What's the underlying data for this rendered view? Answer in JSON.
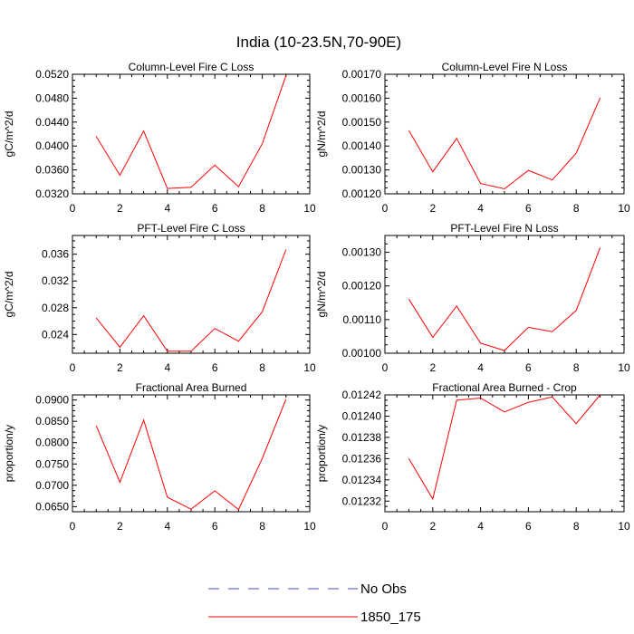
{
  "figure_title": "India (10-23.5N,70-90E)",
  "colors": {
    "series": "#ff0000",
    "obs": "#4b4bc8",
    "axis": "#000000"
  },
  "legend": {
    "obs_label": "No Obs",
    "model_label": "1850_175"
  },
  "chart_data": [
    {
      "type": "line",
      "title": "Column-Level Fire C Loss",
      "ylabel": "gC/m^2/d",
      "xlim": [
        0,
        10
      ],
      "ylim": [
        0.032,
        0.052
      ],
      "xticks": [
        "0",
        "2",
        "4",
        "6",
        "8",
        "10"
      ],
      "yticks": [
        0.032,
        0.036,
        0.04,
        0.044,
        0.048,
        0.052
      ],
      "ytick_labels": [
        "0.0320",
        "0.0360",
        "0.0400",
        "0.0440",
        "0.0480",
        "0.0520"
      ],
      "x": [
        1,
        2,
        3,
        4,
        5,
        6,
        7,
        8,
        9
      ],
      "series": [
        {
          "name": "1850_175",
          "values": [
            0.0416,
            0.0351,
            0.0425,
            0.0329,
            0.0331,
            0.0368,
            0.0332,
            0.0404,
            0.0518
          ]
        }
      ]
    },
    {
      "type": "line",
      "title": "Column-Level Fire N Loss",
      "ylabel": "gN/m^2/d",
      "xlim": [
        0,
        10
      ],
      "ylim": [
        0.0012,
        0.0017
      ],
      "xticks": [
        "0",
        "2",
        "4",
        "6",
        "8",
        "10"
      ],
      "yticks": [
        0.0012,
        0.0013,
        0.0014,
        0.0015,
        0.0016,
        0.0017
      ],
      "ytick_labels": [
        "0.00120",
        "0.00130",
        "0.00140",
        "0.00150",
        "0.00160",
        "0.00170"
      ],
      "x": [
        1,
        2,
        3,
        4,
        5,
        6,
        7,
        8,
        9
      ],
      "series": [
        {
          "name": "1850_175",
          "values": [
            0.001465,
            0.001292,
            0.001432,
            0.001243,
            0.001221,
            0.001298,
            0.001258,
            0.00137,
            0.001601
          ]
        }
      ]
    },
    {
      "type": "line",
      "title": "PFT-Level Fire C Loss",
      "ylabel": "gC/m^2/d",
      "xlim": [
        0,
        10
      ],
      "ylim": [
        0.0212,
        0.0388
      ],
      "xticks": [
        "0",
        "2",
        "4",
        "6",
        "8",
        "10"
      ],
      "yticks": [
        0.024,
        0.028,
        0.032,
        0.036
      ],
      "ytick_labels": [
        "0.024",
        "0.028",
        "0.032",
        "0.036"
      ],
      "x": [
        1,
        2,
        3,
        4,
        5,
        6,
        7,
        8,
        9
      ],
      "series": [
        {
          "name": "1850_175",
          "values": [
            0.0265,
            0.0221,
            0.0268,
            0.0215,
            0.0215,
            0.0249,
            0.023,
            0.0274,
            0.0367
          ]
        }
      ]
    },
    {
      "type": "line",
      "title": "PFT-Level Fire N Loss",
      "ylabel": "gN/m^2/d",
      "xlim": [
        0,
        10
      ],
      "ylim": [
        0.001,
        0.00135
      ],
      "xticks": [
        "0",
        "2",
        "4",
        "6",
        "8",
        "10"
      ],
      "yticks": [
        0.001,
        0.0011,
        0.0012,
        0.0013
      ],
      "ytick_labels": [
        "0.00100",
        "0.00110",
        "0.00120",
        "0.00130"
      ],
      "x": [
        1,
        2,
        3,
        4,
        5,
        6,
        7,
        8,
        9
      ],
      "series": [
        {
          "name": "1850_175",
          "values": [
            0.001161,
            0.001047,
            0.00114,
            0.00103,
            0.001008,
            0.001077,
            0.001064,
            0.001127,
            0.001314
          ]
        }
      ]
    },
    {
      "type": "line",
      "title": "Fractional Area Burned",
      "ylabel": "proportion/y",
      "xlim": [
        0,
        10
      ],
      "ylim": [
        0.0638,
        0.0912
      ],
      "xticks": [
        "0",
        "2",
        "4",
        "6",
        "8",
        "10"
      ],
      "yticks": [
        0.065,
        0.07,
        0.075,
        0.08,
        0.085,
        0.09
      ],
      "ytick_labels": [
        "0.0650",
        "0.0700",
        "0.0750",
        "0.0800",
        "0.0850",
        "0.0900"
      ],
      "x": [
        1,
        2,
        3,
        4,
        5,
        6,
        7,
        8,
        9
      ],
      "series": [
        {
          "name": "1850_175",
          "values": [
            0.084,
            0.0707,
            0.0853,
            0.0672,
            0.0644,
            0.0687,
            0.0643,
            0.0763,
            0.0902
          ]
        }
      ]
    },
    {
      "type": "line",
      "title": "Fractional Area Burned - Crop",
      "ylabel": "proportion/y",
      "xlim": [
        0,
        10
      ],
      "ylim": [
        0.01231,
        0.01242
      ],
      "xticks": [
        "0",
        "2",
        "4",
        "6",
        "8",
        "10"
      ],
      "yticks": [
        0.01232,
        0.01234,
        0.01236,
        0.01238,
        0.0124,
        0.01242
      ],
      "ytick_labels": [
        "0.01232",
        "0.01234",
        "0.01236",
        "0.01238",
        "0.01240",
        "0.01242"
      ],
      "x": [
        1,
        2,
        3,
        4,
        5,
        6,
        7,
        8,
        9
      ],
      "series": [
        {
          "name": "1850_175",
          "values": [
            0.01236,
            0.012322,
            0.012415,
            0.012417,
            0.012404,
            0.012413,
            0.012418,
            0.012393,
            0.01242
          ]
        }
      ]
    }
  ]
}
